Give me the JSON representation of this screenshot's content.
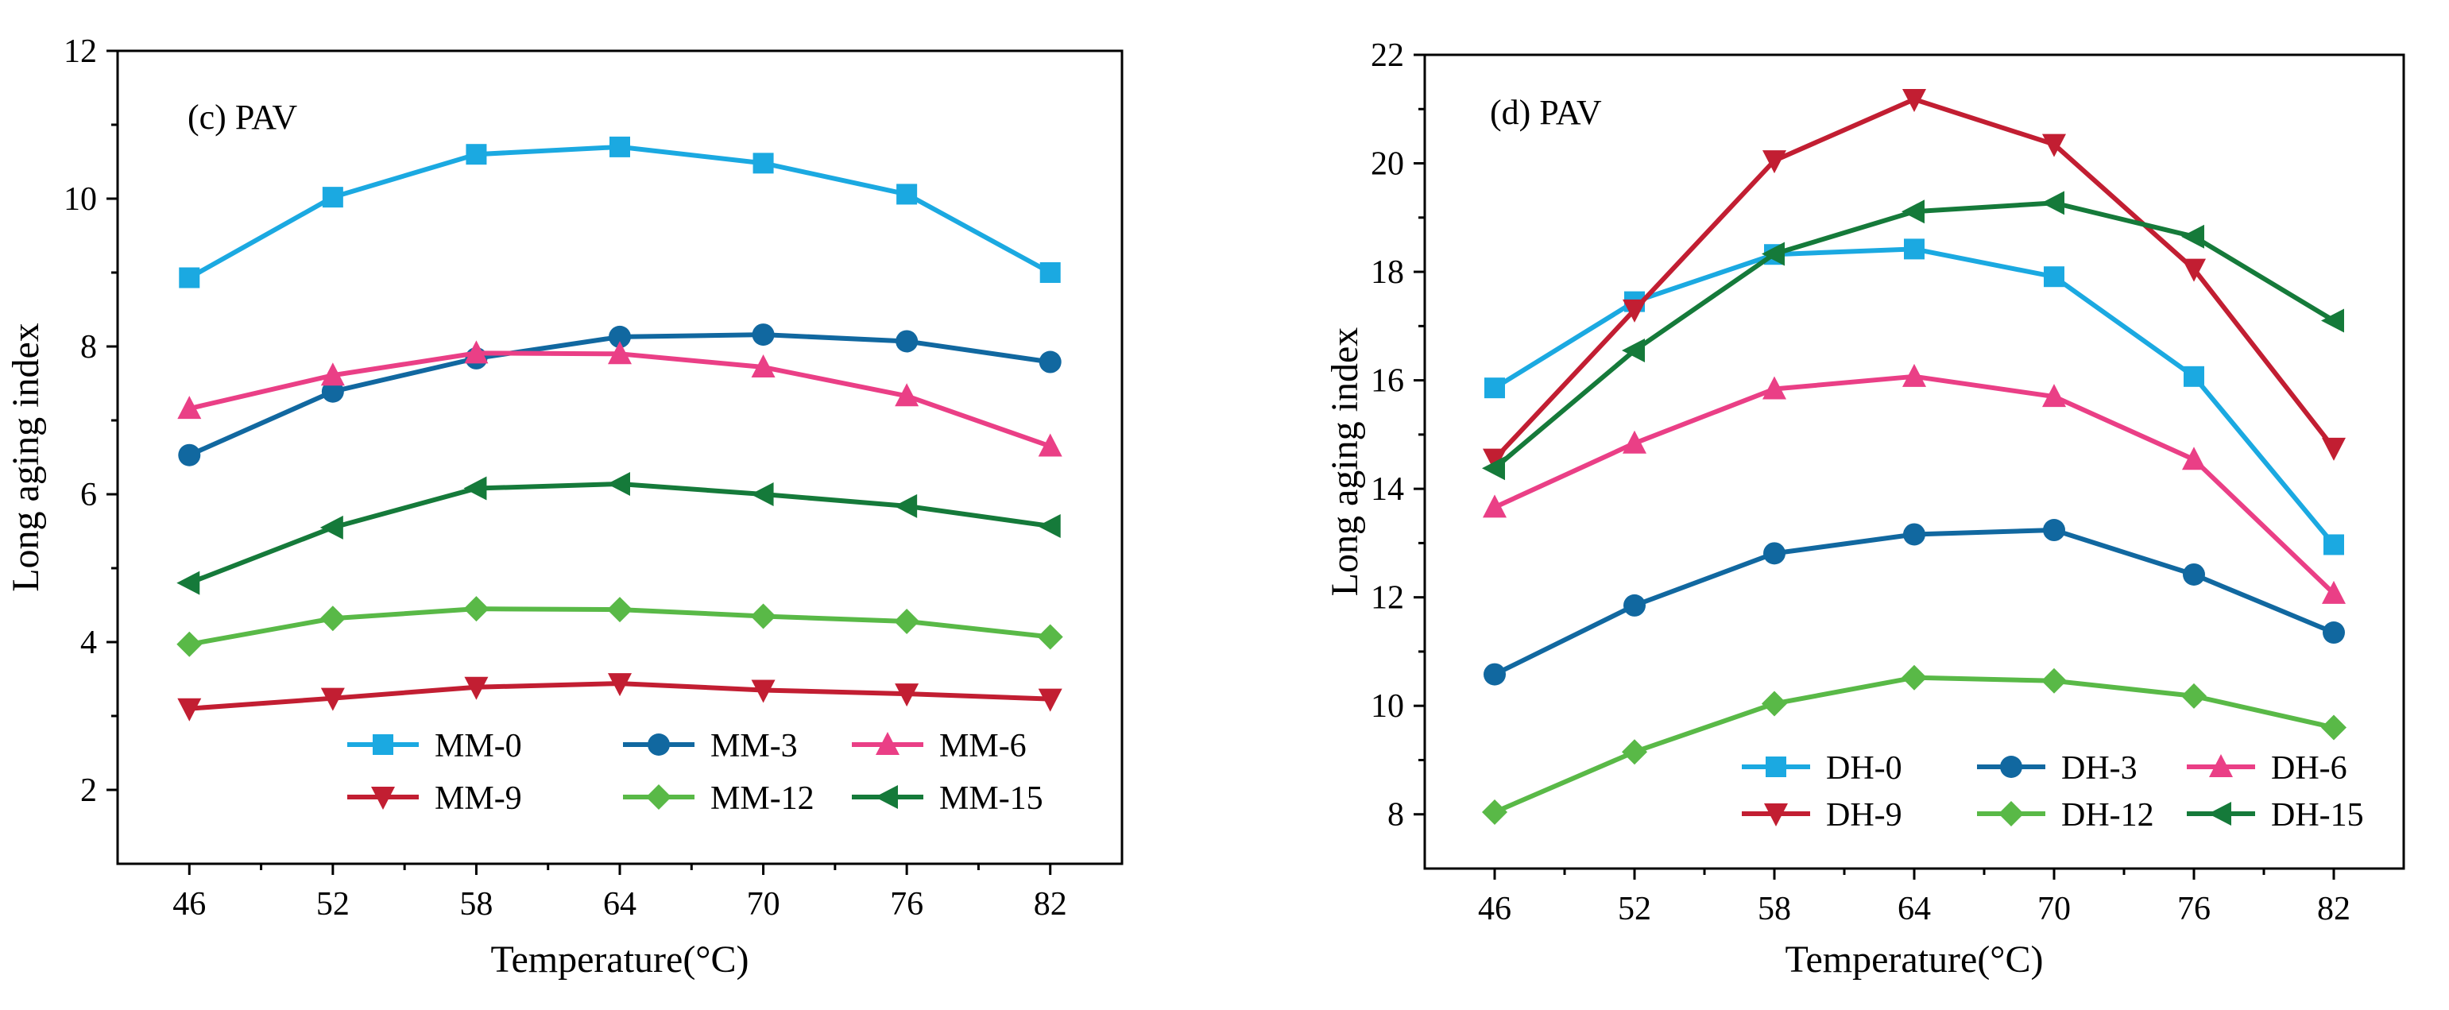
{
  "chart_data": [
    {
      "type": "line",
      "panel_label": "(c) PAV",
      "xlabel": "Temperature(°C)",
      "ylabel": "Long aging index",
      "x": [
        46,
        52,
        58,
        64,
        70,
        76,
        82
      ],
      "x_tick_labels": [
        "46",
        "52",
        "58",
        "64",
        "70",
        "76",
        "82"
      ],
      "xlim": [
        43,
        85
      ],
      "ylim": [
        1,
        12
      ],
      "y_ticks": [
        2,
        4,
        6,
        8,
        10,
        12
      ],
      "y_tick_labels": [
        "2",
        "4",
        "6",
        "8",
        "10",
        "12"
      ],
      "grid": false,
      "legend_position": "bottom-right, two rows",
      "series": [
        {
          "name": "MM-0",
          "color": "#1ba9e1",
          "marker": "square",
          "values": [
            8.93,
            10.02,
            10.6,
            10.7,
            10.48,
            10.06,
            9.0
          ]
        },
        {
          "name": "MM-3",
          "color": "#1168a0",
          "marker": "circle",
          "values": [
            6.53,
            7.39,
            7.84,
            8.13,
            8.16,
            8.07,
            7.79
          ]
        },
        {
          "name": "MM-6",
          "color": "#ea3f86",
          "marker": "triangle-up",
          "values": [
            7.16,
            7.61,
            7.91,
            7.9,
            7.72,
            7.33,
            6.65
          ]
        },
        {
          "name": "MM-9",
          "color": "#c21e32",
          "marker": "triangle-down",
          "values": [
            3.1,
            3.24,
            3.39,
            3.44,
            3.35,
            3.3,
            3.23
          ]
        },
        {
          "name": "MM-12",
          "color": "#59b947",
          "marker": "diamond",
          "values": [
            3.97,
            4.32,
            4.45,
            4.44,
            4.35,
            4.28,
            4.07
          ]
        },
        {
          "name": "MM-15",
          "color": "#157a3a",
          "marker": "triangle-left",
          "values": [
            4.8,
            5.55,
            6.08,
            6.14,
            6.0,
            5.84,
            5.57
          ]
        }
      ]
    },
    {
      "type": "line",
      "panel_label": "(d) PAV",
      "xlabel": "Temperature(°C)",
      "ylabel": "Long aging index",
      "x": [
        46,
        52,
        58,
        64,
        70,
        76,
        82
      ],
      "x_tick_labels": [
        "46",
        "52",
        "58",
        "64",
        "70",
        "76",
        "82"
      ],
      "xlim": [
        43,
        85
      ],
      "ylim": [
        7,
        22
      ],
      "y_ticks": [
        8,
        10,
        12,
        14,
        16,
        18,
        20,
        22
      ],
      "y_tick_labels": [
        "8",
        "10",
        "12",
        "14",
        "16",
        "18",
        "20",
        "22"
      ],
      "grid": false,
      "legend_position": "bottom-right, two rows",
      "series": [
        {
          "name": "DH-0",
          "color": "#1ba9e1",
          "marker": "square",
          "values": [
            15.86,
            17.45,
            18.32,
            18.42,
            17.91,
            16.07,
            12.97
          ]
        },
        {
          "name": "DH-3",
          "color": "#1168a0",
          "marker": "circle",
          "values": [
            10.58,
            11.85,
            12.81,
            13.16,
            13.24,
            12.42,
            11.35
          ]
        },
        {
          "name": "DH-6",
          "color": "#ea3f86",
          "marker": "triangle-up",
          "values": [
            13.66,
            14.84,
            15.84,
            16.07,
            15.7,
            14.54,
            12.07
          ]
        },
        {
          "name": "DH-9",
          "color": "#c21e32",
          "marker": "triangle-down",
          "values": [
            14.55,
            17.3,
            20.05,
            21.18,
            20.35,
            18.05,
            14.75
          ]
        },
        {
          "name": "DH-12",
          "color": "#59b947",
          "marker": "diamond",
          "values": [
            8.04,
            9.15,
            10.04,
            10.52,
            10.46,
            10.18,
            9.6
          ]
        },
        {
          "name": "DH-15",
          "color": "#157a3a",
          "marker": "triangle-left",
          "values": [
            14.38,
            16.55,
            18.33,
            19.11,
            19.27,
            18.65,
            17.1
          ]
        }
      ]
    }
  ]
}
